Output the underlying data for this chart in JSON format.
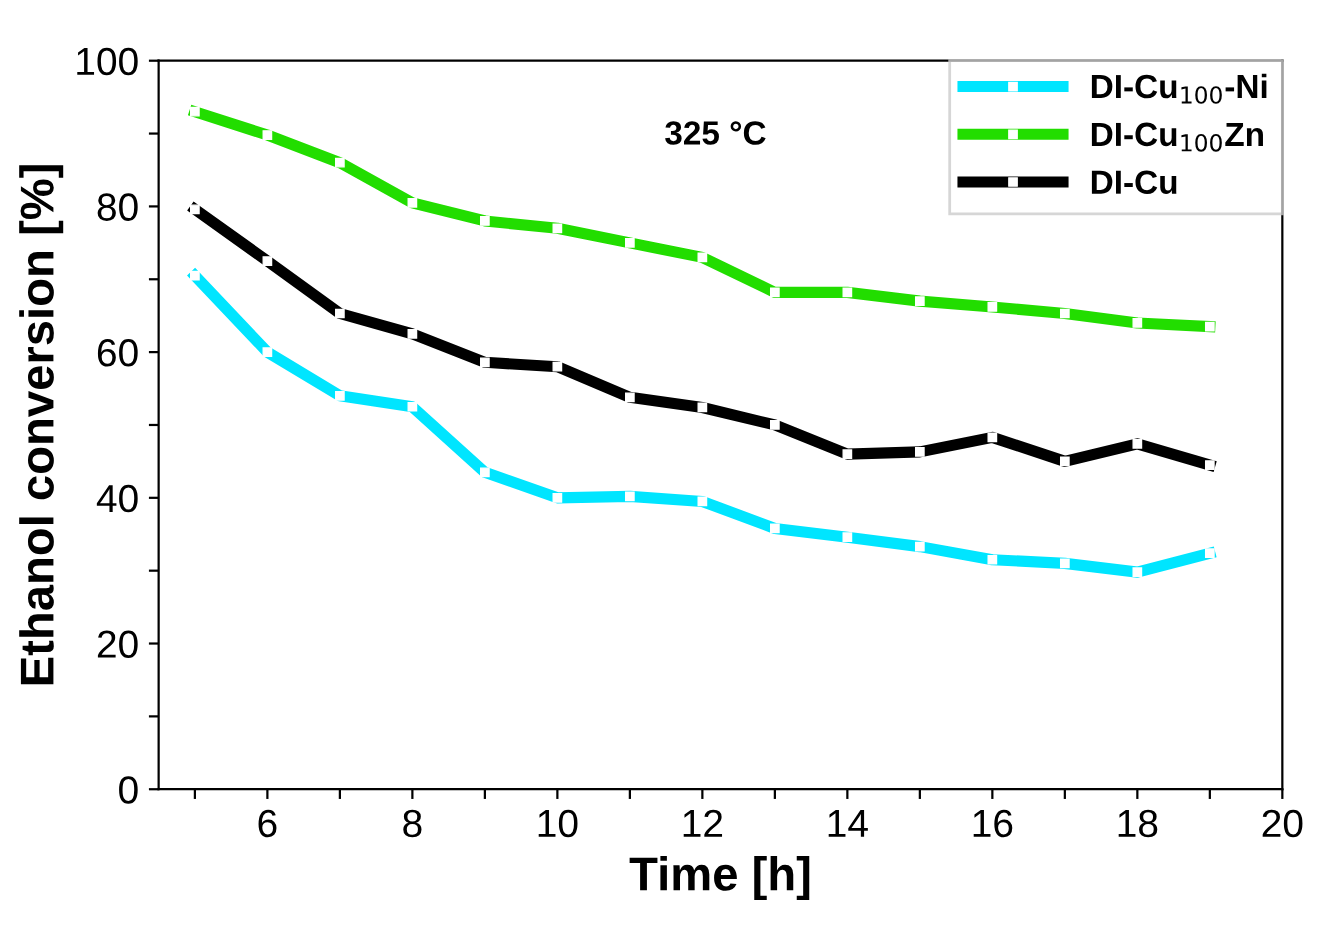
{
  "chart_data": {
    "type": "line",
    "xlabel": "Time [h]",
    "ylabel": "Ethanol conversion [%]",
    "annotations": [
      "325 °C"
    ],
    "x": [
      5,
      6,
      7,
      8,
      9,
      10,
      11,
      12,
      13,
      14,
      15,
      16,
      17,
      18,
      19
    ],
    "series": [
      {
        "name": "DI-Cu$_{100}$-Ni",
        "color": "#00e5ff",
        "values": [
          70.5,
          60,
          54,
          52.5,
          43.5,
          40,
          40.2,
          39.5,
          35.8,
          34.6,
          33.3,
          31.5,
          31,
          29.8,
          32.4
        ]
      },
      {
        "name": "DI-Cu$_{100}$Zn",
        "color": "#22dd00",
        "values": [
          93,
          89.8,
          86,
          80.5,
          78,
          77,
          75,
          73,
          68.2,
          68.2,
          67,
          66.2,
          65.3,
          64,
          63.5
        ]
      },
      {
        "name": "DI-Cu",
        "color": "#000000",
        "values": [
          79.6,
          72.5,
          65.3,
          62.5,
          58.6,
          58,
          53.8,
          52.4,
          50,
          46,
          46.3,
          48.3,
          45,
          47.4,
          44.5
        ]
      }
    ],
    "xlim": [
      4.5,
      20
    ],
    "ylim": [
      0,
      100
    ],
    "xticks": [
      {
        "value": 5,
        "label": null
      },
      6,
      {
        "value": 7,
        "label": null
      },
      8,
      {
        "value": 9,
        "label": null
      },
      10,
      {
        "value": 11,
        "label": null
      },
      12,
      {
        "value": 13,
        "label": null
      },
      14,
      {
        "value": 15,
        "label": null
      },
      16,
      {
        "value": 17,
        "label": null
      },
      18,
      {
        "value": 19,
        "label": null
      },
      20
    ],
    "yticks": [
      0,
      {
        "value": 10,
        "label": null
      },
      20,
      {
        "value": 30,
        "label": null
      },
      40,
      {
        "value": 50,
        "label": null
      },
      60,
      {
        "value": 70,
        "label": null
      },
      80,
      {
        "value": 90,
        "label": null
      },
      100
    ],
    "marker": "square",
    "line_style": "solid",
    "legend": "top right",
    "grid": false
  }
}
